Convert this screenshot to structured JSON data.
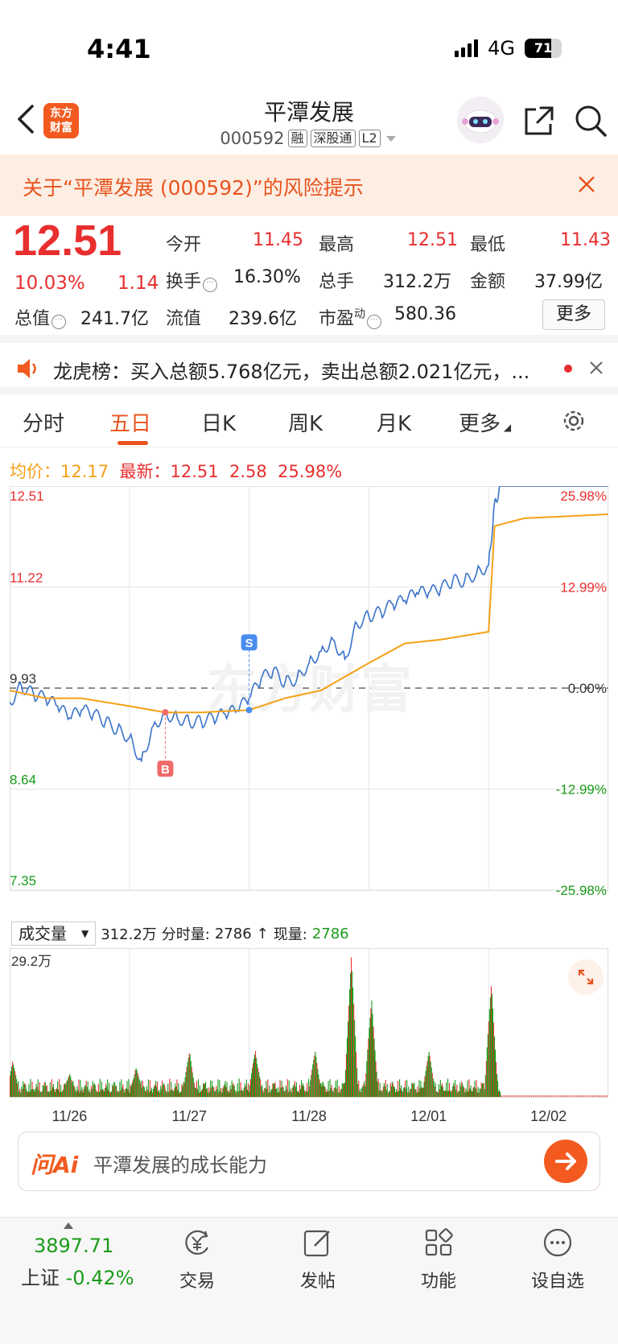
{
  "status_bar": {
    "time": "4:41",
    "network": "4G",
    "battery": "71",
    "battery_level": 0.71
  },
  "header": {
    "logo_text": "东方财富",
    "title": "平潭发展",
    "code": "000592",
    "tags": [
      "融",
      "深股通",
      "L2"
    ]
  },
  "risk_banner": {
    "text": "关于“平潭发展 (000592)”的风险提示"
  },
  "quote": {
    "price": "12.51",
    "change_pct": "10.03%",
    "change": "1.14",
    "stats": {
      "open_label": "今开",
      "open": "11.45",
      "high_label": "最高",
      "high": "12.51",
      "low_label": "最低",
      "low": "11.43",
      "turnover_label": "换手",
      "turnover": "16.30%",
      "volume_label": "总手",
      "volume": "312.2万",
      "amount_label": "金额",
      "amount": "37.99亿",
      "mktcap_label": "总值",
      "mktcap": "241.7亿",
      "float_label": "流值",
      "float": "239.6亿",
      "pe_label": "市盈",
      "pe_sup": "动",
      "pe": "580.36"
    },
    "more_label": "更多"
  },
  "ticker": {
    "text": "龙虎榜：买入总额5.768亿元，卖出总额2.021亿元，..."
  },
  "tabs": [
    "分时",
    "五日",
    "日K",
    "周K",
    "月K",
    "更多"
  ],
  "active_tab": 1,
  "info_line": {
    "avg_label": "均价：",
    "avg": "12.17",
    "last_label": "最新：",
    "last": "12.51",
    "change": "2.58",
    "pct": "25.98%"
  },
  "volume_panel": {
    "selector": "成交量",
    "total": "312.2万",
    "min_label": "分时量:",
    "min_value": "2786",
    "now_label": "现量:",
    "now_value": "2786",
    "max_label": "29.2万"
  },
  "ask_ai": {
    "logo": "问Ai",
    "prompt": "平潭发展的成长能力"
  },
  "bottom_nav": {
    "index_value": "3897.71",
    "index_name": "上证",
    "index_change": "-0.42%",
    "items": [
      "交易",
      "发帖",
      "功能",
      "设自选"
    ]
  },
  "chart_data": {
    "type": "line",
    "title": "",
    "x_days": [
      "11/26",
      "11/27",
      "11/28",
      "12/01",
      "12/02"
    ],
    "y_left_ticks": [
      "12.51",
      "11.22",
      "9.93",
      "8.64",
      "7.35"
    ],
    "y_right_ticks": [
      "25.98%",
      "12.99%",
      "0.00%",
      "-12.99%",
      "-25.98%"
    ],
    "ylim": [
      7.35,
      12.51
    ],
    "prev_close": 9.93,
    "markers": [
      {
        "label": "B",
        "day": "11/27",
        "price": 9.62
      },
      {
        "label": "S",
        "day": "11/27",
        "price": 9.65
      }
    ],
    "series": [
      {
        "name": "price",
        "color": "#3a73c9",
        "x": [
          0,
          0.1,
          0.2,
          0.3,
          0.4,
          0.5,
          0.6,
          0.7,
          0.8,
          0.9,
          1.0,
          1.1,
          1.2,
          1.3,
          1.4,
          1.5,
          1.6,
          1.7,
          1.8,
          1.9,
          2.0,
          2.1,
          2.2,
          2.3,
          2.4,
          2.5,
          2.6,
          2.7,
          2.8,
          2.9,
          3.0,
          3.1,
          3.2,
          3.3,
          3.4,
          3.5,
          3.6,
          3.7,
          3.8,
          3.9,
          4.0,
          4.05,
          4.1,
          4.3,
          4.6,
          5.0
        ],
        "y": [
          9.75,
          9.95,
          9.85,
          9.8,
          9.7,
          9.55,
          9.65,
          9.6,
          9.5,
          9.4,
          9.3,
          9.0,
          9.45,
          9.6,
          9.55,
          9.5,
          9.5,
          9.55,
          9.6,
          9.65,
          9.8,
          10.05,
          10.15,
          10.0,
          10.05,
          10.25,
          10.4,
          10.55,
          10.3,
          10.75,
          10.85,
          10.9,
          11.0,
          11.05,
          11.15,
          11.15,
          11.2,
          11.3,
          11.3,
          11.4,
          11.5,
          12.3,
          12.51,
          12.51,
          12.51,
          12.51
        ]
      },
      {
        "name": "avg",
        "color": "#f5a017",
        "x": [
          0,
          0.3,
          0.6,
          1.0,
          1.3,
          1.6,
          2.0,
          2.3,
          2.6,
          3.0,
          3.3,
          3.6,
          4.0,
          4.05,
          4.3,
          4.6,
          5.0
        ],
        "y": [
          9.9,
          9.8,
          9.8,
          9.7,
          9.62,
          9.62,
          9.65,
          9.8,
          9.9,
          10.25,
          10.5,
          10.55,
          10.65,
          12.0,
          12.1,
          12.12,
          12.15
        ]
      }
    ],
    "volume_max": 292000,
    "volume_series": {
      "name": "volume",
      "spikes_day": [
        0.02,
        0.5,
        1.05,
        1.5,
        2.05,
        2.55,
        2.85,
        3.02,
        3.5,
        4.02
      ],
      "spikes_height": [
        0.45,
        0.3,
        0.38,
        0.5,
        0.6,
        0.55,
        1.0,
        0.95,
        0.4,
        1.0
      ]
    }
  }
}
